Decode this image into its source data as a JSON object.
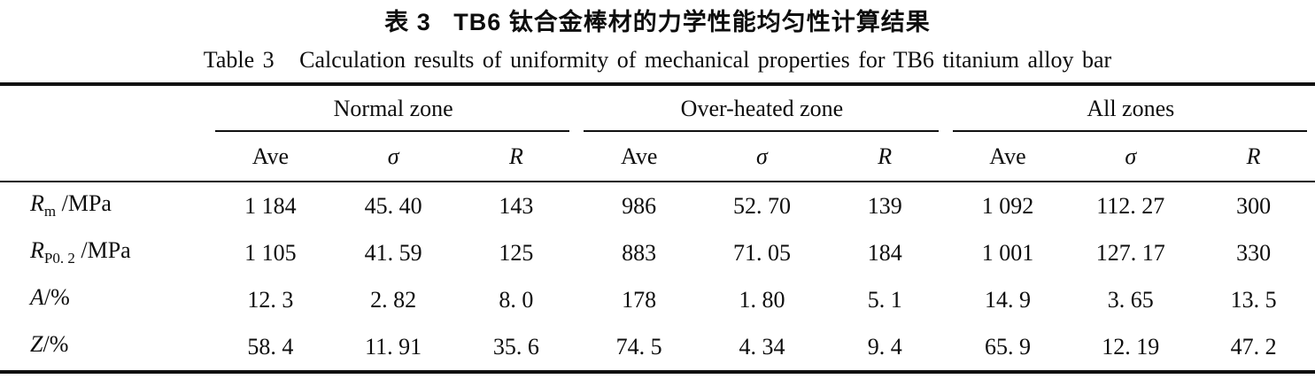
{
  "title_cn": "表 3   TB6 钛合金棒材的力学性能均匀性计算结果",
  "title_en": "Table 3   Calculation results of uniformity of mechanical properties for TB6 titanium alloy bar",
  "table": {
    "groups": [
      {
        "label": "Normal zone"
      },
      {
        "label": "Over-heated zone"
      },
      {
        "label": "All zones"
      }
    ],
    "subheaders": [
      "Ave",
      "σ",
      "R"
    ],
    "rows": [
      {
        "label_base": "R",
        "label_sub": "m",
        "label_unit": " /MPa",
        "values": [
          "1 184",
          "45. 40",
          "143",
          "986",
          "52. 70",
          "139",
          "1 092",
          "112. 27",
          "300"
        ]
      },
      {
        "label_base": "R",
        "label_sub": "P0. 2",
        "label_unit": " /MPa",
        "values": [
          "1 105",
          "41. 59",
          "125",
          "883",
          "71. 05",
          "184",
          "1 001",
          "127. 17",
          "330"
        ]
      },
      {
        "label_base": "A",
        "label_sub": "",
        "label_unit": "/%",
        "values": [
          "12. 3",
          "2. 82",
          "8. 0",
          "178",
          "1. 80",
          "5. 1",
          "14. 9",
          "3. 65",
          "13. 5"
        ]
      },
      {
        "label_base": "Z",
        "label_sub": "",
        "label_unit": "/%",
        "values": [
          "58. 4",
          "11. 91",
          "35. 6",
          "74. 5",
          "4. 34",
          "9. 4",
          "65. 9",
          "12. 19",
          "47. 2"
        ]
      }
    ]
  }
}
